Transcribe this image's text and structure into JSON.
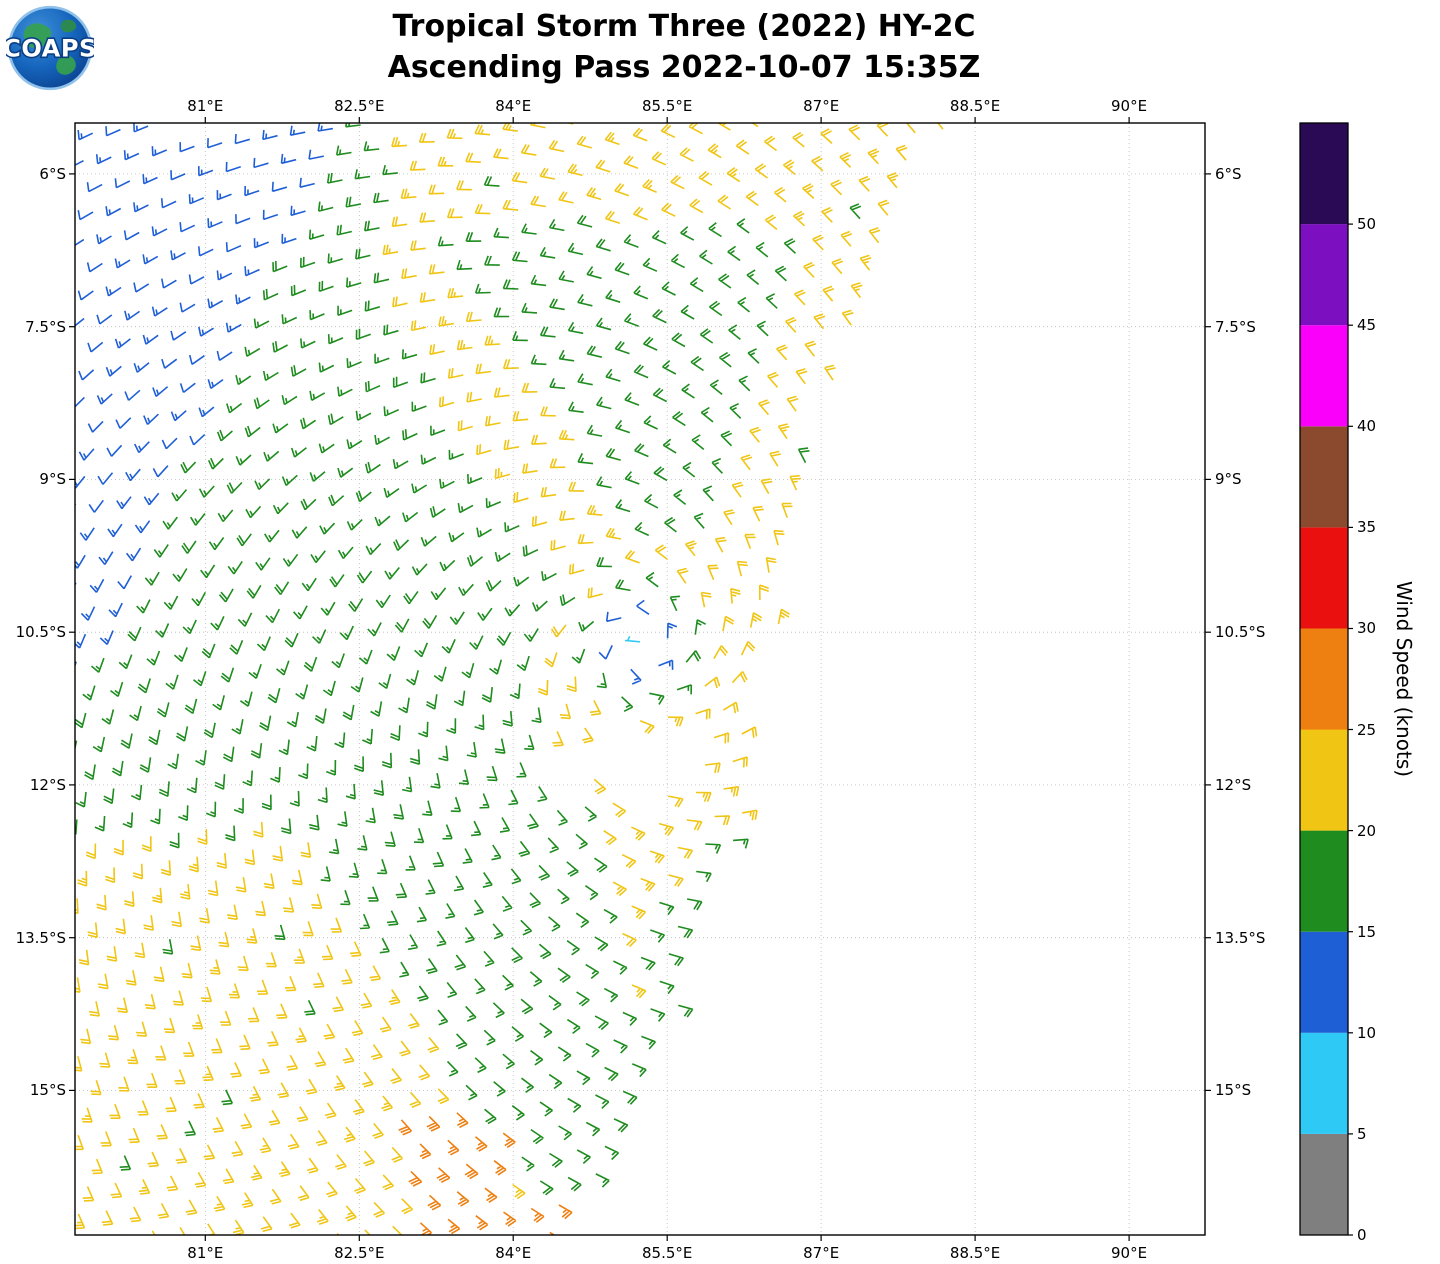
{
  "header": {
    "title_line1": "Tropical Storm Three (2022) HY-2C",
    "title_line2": "Ascending Pass 2022-10-07 15:35Z",
    "logo_text": "COAPS"
  },
  "chart_data": {
    "type": "wind_barbs",
    "title": "Tropical Storm Three (2022) HY-2C",
    "subtitle": "Ascending Pass 2022-10-07 15:35Z",
    "satellite": "HY-2C",
    "pass": "Ascending",
    "datetime_utc": "2022-10-07 15:35Z",
    "grid": "dashed",
    "x_axis": {
      "ticks": [
        81,
        82.5,
        84,
        85.5,
        87,
        88.5,
        90
      ],
      "tick_labels": [
        "81°E",
        "82.5°E",
        "84°E",
        "85.5°E",
        "87°E",
        "88.5°E",
        "90°E"
      ],
      "range_deg_e": [
        79.73,
        90.74
      ]
    },
    "y_axis": {
      "ticks": [
        6,
        7.5,
        9,
        10.5,
        12,
        13.5,
        15
      ],
      "tick_labels": [
        "6°S",
        "7.5°S",
        "9°S",
        "10.5°S",
        "12°S",
        "13.5°S",
        "15°S"
      ],
      "range_deg_s": [
        5.5,
        16.42
      ]
    },
    "colorbar": {
      "label": "Wind Speed (knots)",
      "ticks": [
        0,
        5,
        10,
        15,
        20,
        25,
        30,
        35,
        40,
        45,
        50
      ],
      "tick_labels": [
        "0",
        "5",
        "10",
        "15",
        "20",
        "25",
        "30",
        "35",
        "40",
        "45",
        "50"
      ],
      "value_top": 55,
      "segments": [
        {
          "min": 0,
          "max": 5,
          "color": "#7f7f7f"
        },
        {
          "min": 5,
          "max": 10,
          "color": "#2ec9f5"
        },
        {
          "min": 10,
          "max": 15,
          "color": "#1f5fd6"
        },
        {
          "min": 15,
          "max": 20,
          "color": "#1e8c1e"
        },
        {
          "min": 20,
          "max": 25,
          "color": "#f0c514"
        },
        {
          "min": 25,
          "max": 30,
          "color": "#ee7f11"
        },
        {
          "min": 30,
          "max": 35,
          "color": "#ea1010"
        },
        {
          "min": 35,
          "max": 40,
          "color": "#8b4a2e"
        },
        {
          "min": 40,
          "max": 45,
          "color": "#fa00fa"
        },
        {
          "min": 45,
          "max": 50,
          "color": "#7c0fc0"
        },
        {
          "min": 50,
          "max": 55,
          "color": "#2b0a55"
        }
      ]
    },
    "storm_center": {
      "lon_deg_e": 85.25,
      "lat_deg_s": 10.65
    },
    "swath_edge_lon_by_lat": [
      [
        5.2,
        88.35
      ],
      [
        6.5,
        87.8
      ],
      [
        7.5,
        87.35
      ],
      [
        9.0,
        86.85
      ],
      [
        10.5,
        86.5
      ],
      [
        11.5,
        86.35
      ],
      [
        12.5,
        86.1
      ],
      [
        13.5,
        85.75
      ],
      [
        14.5,
        85.45
      ],
      [
        15.5,
        85.05
      ],
      [
        16.6,
        84.55
      ]
    ],
    "barb_grid": {
      "origin": [
        79.0,
        5.2
      ],
      "du_deg": 0.27,
      "dv_deg": 0.27,
      "row_shear": -0.035,
      "col_shear": -0.089,
      "nu": 41,
      "nv": 49
    },
    "wind_field_model": {
      "rotation": "clockwise_southern_hemisphere",
      "tangential_weight": 0.93,
      "inflow_weight": 0.36,
      "rings": [
        {
          "r_max_deg": 0.16,
          "speed_kt": 7.5
        },
        {
          "r_max_deg": 0.4,
          "speed_kt": 12.5
        },
        {
          "r_max_deg": 0.62,
          "speed_kt": 17
        }
      ],
      "yellow_annulus": {
        "base_r_deg": 1.35,
        "asym_amp_deg": 0.55,
        "phase_rad": 0.6,
        "speed_kt": 21.5
      },
      "ambient": {
        "default_kt": 17,
        "nw_blue_kt": 12.5,
        "nw_blue_bound": [
          82.45,
          0.47
        ],
        "top_yellow": {
          "lat_max_s": 6.55,
          "lon_min_e": 82.9,
          "kt": 21.5
        },
        "edge_yellow_band_deg": 0.75,
        "mid_edge_yellow_band_deg": 0.6,
        "south_yellow": {
          "lat_min_s": 12.35,
          "kt": 21.5
        },
        "green_arm": {
          "west": [
            81.9,
            0.6
          ],
          "east": [
            84.75,
            0.22
          ],
          "lat_max_s": 16.05,
          "kt": 17
        },
        "edge_green_strip": {
          "lat_range_s": [
            12.35,
            14.6
          ],
          "band_deg": 0.45,
          "kt": 17
        },
        "orange_patches": [
          {
            "lat_s": [
              15.2,
              15.8
            ],
            "lon_e": [
              82.85,
              84.05
            ],
            "kt": 26.5
          },
          {
            "lat_s": [
              15.95,
              16.4
            ],
            "lon_e": [
              82.95,
              84.55
            ],
            "kt": 26.5
          }
        ],
        "nw_yellow_band": {
          "a": [
            83.15,
            7.05
          ],
          "b": [
            84.85,
            9.75
          ],
          "half_width_deg": 0.42,
          "kt": 21.5
        }
      },
      "speed_jitter_kt": 1.6,
      "rain_gap": {
        "center": [
          85.05,
          11.78
        ],
        "rx_deg": 0.78,
        "ry_deg": 0.4,
        "drop_fraction": 0.72
      }
    }
  }
}
